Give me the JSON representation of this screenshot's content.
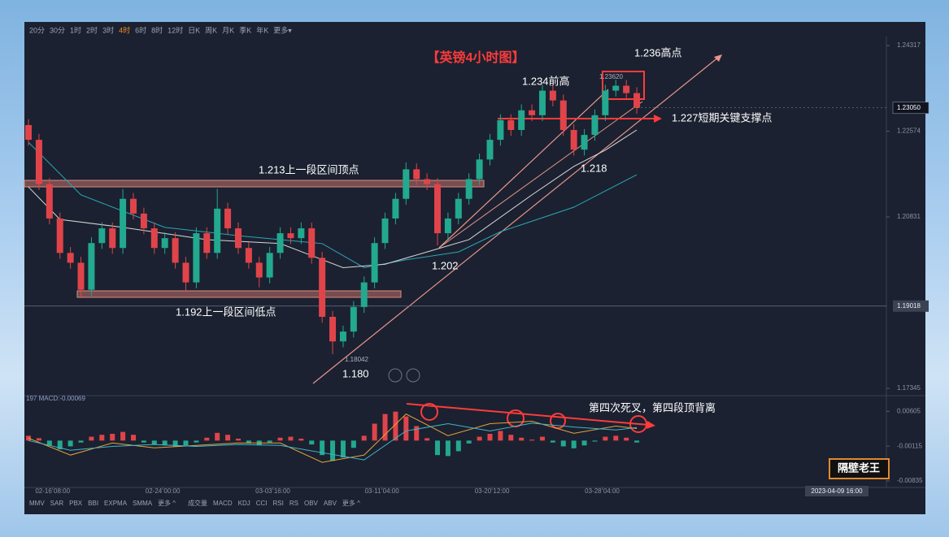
{
  "toolbar": {
    "periods": [
      "20分",
      "30分",
      "1时",
      "2时",
      "3时",
      "4时",
      "6时",
      "8时",
      "12时",
      "日K",
      "周K",
      "月K",
      "季K",
      "年K",
      "更多▾"
    ],
    "active_period": "4时"
  },
  "indicator_bar": {
    "left": [
      "MMV",
      "SAR",
      "PBX",
      "BBI",
      "EXPMA",
      "SMMA",
      "更多 ^"
    ],
    "right": [
      "成交量",
      "MACD",
      "KDJ",
      "CCI",
      "RSI",
      "RS",
      "OBV",
      "ABV",
      "更多 ^"
    ]
  },
  "logo": "隔壁老王",
  "chart_data": [
    {
      "type": "candlestick",
      "title": "【英镑4小时图】",
      "up_color": "#22a98f",
      "down_color": "#e0444a",
      "candles": [
        [
          1.227,
          1.2282,
          1.2228,
          1.224
        ],
        [
          1.224,
          1.2252,
          1.2138,
          1.215
        ],
        [
          1.215,
          1.2162,
          1.2068,
          1.208
        ],
        [
          1.208,
          1.2092,
          1.1998,
          1.201
        ],
        [
          1.201,
          1.2022,
          1.1978,
          1.199
        ],
        [
          1.199,
          1.2002,
          1.1918,
          1.1935
        ],
        [
          1.1935,
          1.2042,
          1.1923,
          1.203
        ],
        [
          1.203,
          1.2072,
          1.2018,
          1.206
        ],
        [
          1.206,
          1.2072,
          1.2008,
          1.202
        ],
        [
          1.202,
          1.214,
          1.2008,
          1.212
        ],
        [
          1.212,
          1.2132,
          1.2078,
          1.209
        ],
        [
          1.209,
          1.2102,
          1.2048,
          1.206
        ],
        [
          1.206,
          1.2072,
          1.2008,
          1.202
        ],
        [
          1.202,
          1.2052,
          1.2008,
          1.204
        ],
        [
          1.204,
          1.2052,
          1.1978,
          1.199
        ],
        [
          1.199,
          1.2002,
          1.193,
          1.195
        ],
        [
          1.195,
          1.2062,
          1.1938,
          1.205
        ],
        [
          1.205,
          1.2062,
          1.1998,
          1.201
        ],
        [
          1.201,
          1.214,
          1.1998,
          1.21
        ],
        [
          1.21,
          1.2112,
          1.2048,
          1.206
        ],
        [
          1.206,
          1.2072,
          1.2008,
          1.202
        ],
        [
          1.202,
          1.2032,
          1.1978,
          1.199
        ],
        [
          1.199,
          1.2002,
          1.194,
          1.196
        ],
        [
          1.196,
          1.2022,
          1.1948,
          1.201
        ],
        [
          1.201,
          1.2062,
          1.1998,
          1.205
        ],
        [
          1.205,
          1.2062,
          1.2028,
          1.204
        ],
        [
          1.204,
          1.2072,
          1.2028,
          1.206
        ],
        [
          1.206,
          1.2072,
          1.1988,
          1.2
        ],
        [
          1.2,
          1.2012,
          1.1868,
          1.188
        ],
        [
          1.188,
          1.1892,
          1.1804,
          1.183
        ],
        [
          1.183,
          1.1862,
          1.1818,
          1.185
        ],
        [
          1.185,
          1.1912,
          1.1838,
          1.19
        ],
        [
          1.19,
          1.1962,
          1.1888,
          1.195
        ],
        [
          1.195,
          1.2042,
          1.1938,
          1.203
        ],
        [
          1.203,
          1.2092,
          1.2018,
          1.208
        ],
        [
          1.208,
          1.2132,
          1.2068,
          1.212
        ],
        [
          1.212,
          1.2194,
          1.2108,
          1.218
        ],
        [
          1.218,
          1.2192,
          1.2148,
          1.216
        ],
        [
          1.216,
          1.2172,
          1.2138,
          1.215
        ],
        [
          1.215,
          1.2162,
          1.2025,
          1.205
        ],
        [
          1.205,
          1.2092,
          1.2038,
          1.208
        ],
        [
          1.208,
          1.2132,
          1.2068,
          1.212
        ],
        [
          1.212,
          1.2172,
          1.2108,
          1.216
        ],
        [
          1.216,
          1.2212,
          1.2148,
          1.22
        ],
        [
          1.22,
          1.2252,
          1.2188,
          1.224
        ],
        [
          1.224,
          1.2292,
          1.2228,
          1.228
        ],
        [
          1.228,
          1.2292,
          1.2248,
          1.226
        ],
        [
          1.226,
          1.2312,
          1.2248,
          1.23
        ],
        [
          1.23,
          1.2312,
          1.2278,
          1.229
        ],
        [
          1.229,
          1.2352,
          1.2278,
          1.234
        ],
        [
          1.234,
          1.2352,
          1.2308,
          1.232
        ],
        [
          1.232,
          1.2332,
          1.2248,
          1.226
        ],
        [
          1.226,
          1.2272,
          1.2208,
          1.222
        ],
        [
          1.222,
          1.2262,
          1.2208,
          1.225
        ],
        [
          1.225,
          1.2302,
          1.2238,
          1.229
        ],
        [
          1.229,
          1.2352,
          1.2278,
          1.234
        ],
        [
          1.234,
          1.2362,
          1.2328,
          1.235
        ],
        [
          1.235,
          1.2362,
          1.2323,
          1.2335
        ],
        [
          1.2335,
          1.2347,
          1.2293,
          1.2305
        ]
      ],
      "overlays": [
        {
          "color": "#2aa6b8",
          "x": [
            0,
            5,
            13,
            20,
            28,
            32,
            36,
            41,
            45,
            52,
            58
          ],
          "values": [
            1.2235,
            1.2128,
            1.2062,
            1.2045,
            1.2029,
            1.198,
            1.1996,
            1.2012,
            1.2053,
            1.2103,
            1.2169
          ]
        },
        {
          "color": "#d8d8d8",
          "x": [
            0,
            3,
            9,
            17,
            24,
            30,
            34,
            38,
            42,
            48,
            52,
            55,
            58
          ],
          "values": [
            1.2144,
            1.2078,
            1.2062,
            1.2037,
            1.2029,
            1.198,
            1.1987,
            1.2012,
            1.2037,
            1.2128,
            1.2186,
            1.2219,
            1.226
          ]
        }
      ],
      "xlim": [
        -0.39,
        81.8
      ],
      "xticks": [
        {
          "value": 2.3,
          "label": "02-16 08:00"
        },
        {
          "value": 12.8,
          "label": "02-24 00:00"
        },
        {
          "value": 23.3,
          "label": "03-03 16:00"
        },
        {
          "value": 33.7,
          "label": "03-11 04:00"
        },
        {
          "value": 44.2,
          "label": "03-20 12:00"
        },
        {
          "value": 54.7,
          "label": "03-28 04:00"
        }
      ],
      "ylim": [
        1.1723,
        1.245
      ],
      "yticks": [
        1.17345,
        1.20831,
        1.22574,
        1.24317
      ],
      "last_price": {
        "value": 1.2305,
        "label": "1.23050"
      },
      "crosshair_price": 1.19018,
      "crosshair_time": "2023-04-09 16:00",
      "annotations": {
        "high_1236": "1.236高点",
        "prev_high": "1.234前高",
        "high_print": "1.23620",
        "support": "1.227短期关键支撑点",
        "range_top": "1.213上一段区间顶点",
        "low_1218": "1.218",
        "low_1202": "1.202",
        "range_low": "1.192上一段区间低点",
        "low_print": "1.18042",
        "low_1180": "1.180"
      }
    },
    {
      "type": "macd",
      "label": "197 MACD:-0.00069",
      "up_color": "#e0444a",
      "down_color": "#22a98f",
      "hist": [
        0.001,
        0.0005,
        -0.001,
        -0.0018,
        -0.0012,
        -0.0004,
        0.0008,
        0.0012,
        0.0014,
        0.0018,
        0.0012,
        -0.0004,
        -0.0008,
        -0.001,
        -0.0012,
        -0.001,
        -0.0004,
        0.0006,
        0.0016,
        0.0012,
        0.0004,
        -0.0006,
        -0.001,
        -0.0004,
        0.0006,
        0.0008,
        0.0004,
        -0.0008,
        -0.003,
        -0.0042,
        -0.0035,
        -0.0015,
        0.001,
        0.0035,
        0.0055,
        0.006,
        0.005,
        0.003,
        0.0005,
        -0.003,
        -0.0032,
        -0.0022,
        -0.0006,
        0.0008,
        0.0014,
        0.002,
        0.0012,
        0.0006,
        0.0002,
        0.0008,
        -0.0004,
        -0.0012,
        -0.0016,
        -0.001,
        -0.0002,
        0.0008,
        0.001,
        0.0006,
        -0.0004
      ],
      "lines": [
        {
          "color": "#e6a23c",
          "x": [
            0,
            4,
            8,
            12,
            16,
            20,
            24,
            28,
            32,
            36,
            40,
            44,
            48,
            52,
            56,
            58
          ],
          "values": [
            0.0005,
            -0.003,
            -0.0005,
            -0.0015,
            -0.001,
            -0.0005,
            -0.0005,
            -0.0045,
            -0.003,
            0.0055,
            0.001,
            0.0035,
            0.004,
            0.0015,
            0.003,
            0.0025
          ]
        },
        {
          "color": "#3fb6c9",
          "x": [
            0,
            4,
            8,
            12,
            16,
            20,
            24,
            28,
            32,
            36,
            40,
            44,
            48,
            52,
            56,
            58
          ],
          "values": [
            0.0,
            -0.002,
            -0.0012,
            -0.0008,
            -0.0012,
            -0.0008,
            -0.001,
            -0.0025,
            -0.004,
            0.002,
            0.0035,
            0.002,
            0.0036,
            0.0028,
            0.0022,
            0.0027
          ]
        }
      ],
      "xlim": [
        -0.39,
        81.8
      ],
      "ylim": [
        -0.0097,
        0.0088
      ],
      "yticks": [
        -0.00835,
        -0.00115,
        0.00605
      ],
      "annotation": "第四次死叉，第四段顶背离"
    }
  ]
}
